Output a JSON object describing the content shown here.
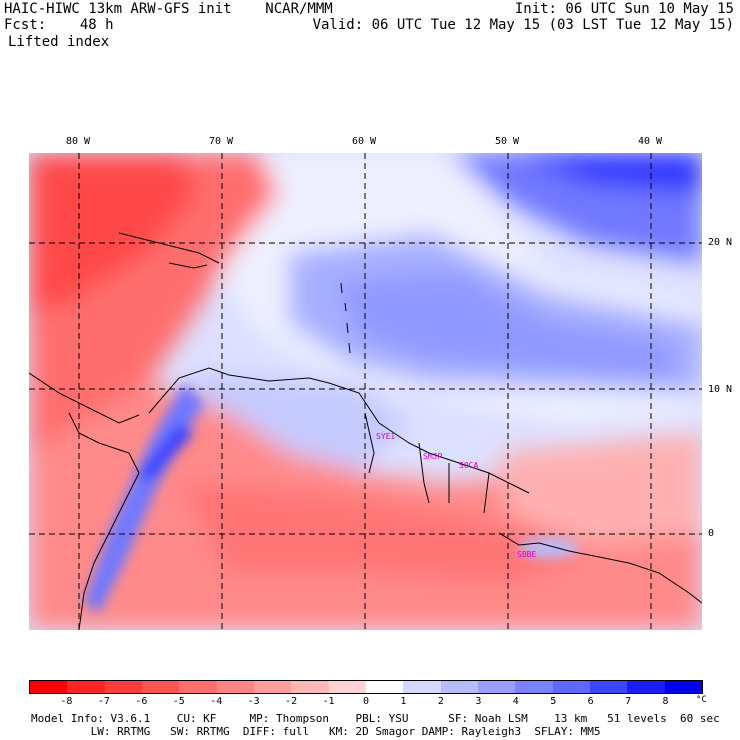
{
  "header": {
    "line1_left": "HAIC-HIWC 13km ARW-GFS init    NCAR/MMM",
    "line2_left": "Fcst:    48 h",
    "line3_left": "Lifted index",
    "line1_right": "Init: 06 UTC Sun 10 May 15",
    "line2_right": "Valid: 06 UTC Tue 12 May 15 (03 LST Tue 12 May 15)"
  },
  "map": {
    "lon_labels": [
      "80 W",
      "70 W",
      "60 W",
      "50 W",
      "40 W"
    ],
    "lat_labels": [
      "20 N",
      "10 N",
      "0"
    ],
    "stations": [
      "SYEI",
      "SMJP",
      "SOCA",
      "SBBE"
    ]
  },
  "colorbar": {
    "ticks": [
      "-8",
      "-7",
      "-6",
      "-5",
      "-4",
      "-3",
      "-2",
      "-1",
      "0",
      "1",
      "2",
      "3",
      "4",
      "5",
      "6",
      "7",
      "8"
    ],
    "unit": "°C",
    "colors": [
      "#ff0000",
      "#ff2424",
      "#ff3d3d",
      "#ff5555",
      "#ff6d6d",
      "#ff8585",
      "#ff9d9d",
      "#ffb6b6",
      "#ffd3d3",
      "#ffffff",
      "#d6d9ff",
      "#b6bcff",
      "#9d9dff",
      "#7d83ff",
      "#5f67ff",
      "#3d45ff",
      "#1d1dff",
      "#0000ee"
    ]
  },
  "footer": {
    "line1": "Model Info: V3.6.1    CU: KF     MP: Thompson    PBL: YSU      SF: Noah LSM    13 km   51 levels  60 sec",
    "line2": "         LW: RRTMG   SW: RRTMG  DIFF: full   KM: 2D Smagor DAMP: Rayleigh3  SFLAY: MM5"
  }
}
